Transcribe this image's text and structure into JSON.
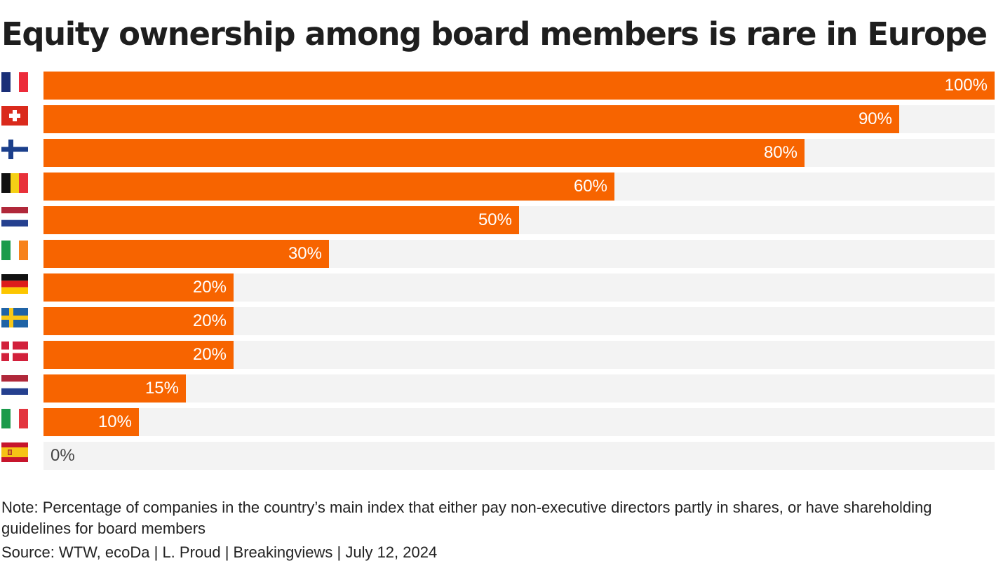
{
  "title": "Equity ownership among board members is rare in Europe",
  "note": "Note: Percentage of companies in the country’s main index that either pay non-executive directors partly in shares, or have shareholding guidelines for board members",
  "source": "Source: WTW, ecoDa | L. Proud | Breakingviews | July 12, 2024",
  "colors": {
    "bar": "#f76400",
    "track": "#f3f3f3"
  },
  "chart_data": {
    "type": "bar",
    "orientation": "horizontal",
    "title": "Equity ownership among board members is rare in Europe",
    "xlim": [
      0,
      100
    ],
    "unit": "%",
    "grid": false,
    "categories": [
      "france-flag-icon",
      "switzerland-flag-icon",
      "finland-flag-icon",
      "belgium-flag-icon",
      "netherlands-flag-icon",
      "ireland-flag-icon",
      "germany-flag-icon",
      "sweden-flag-icon",
      "denmark-flag-icon",
      "netherlands-flag-icon",
      "italy-flag-icon",
      "spain-flag-icon"
    ],
    "values": [
      100,
      90,
      80,
      60,
      50,
      30,
      20,
      20,
      20,
      15,
      10,
      0
    ],
    "value_labels": [
      "100%",
      "90%",
      "80%",
      "60%",
      "50%",
      "30%",
      "20%",
      "20%",
      "20%",
      "15%",
      "10%",
      "0%"
    ]
  }
}
